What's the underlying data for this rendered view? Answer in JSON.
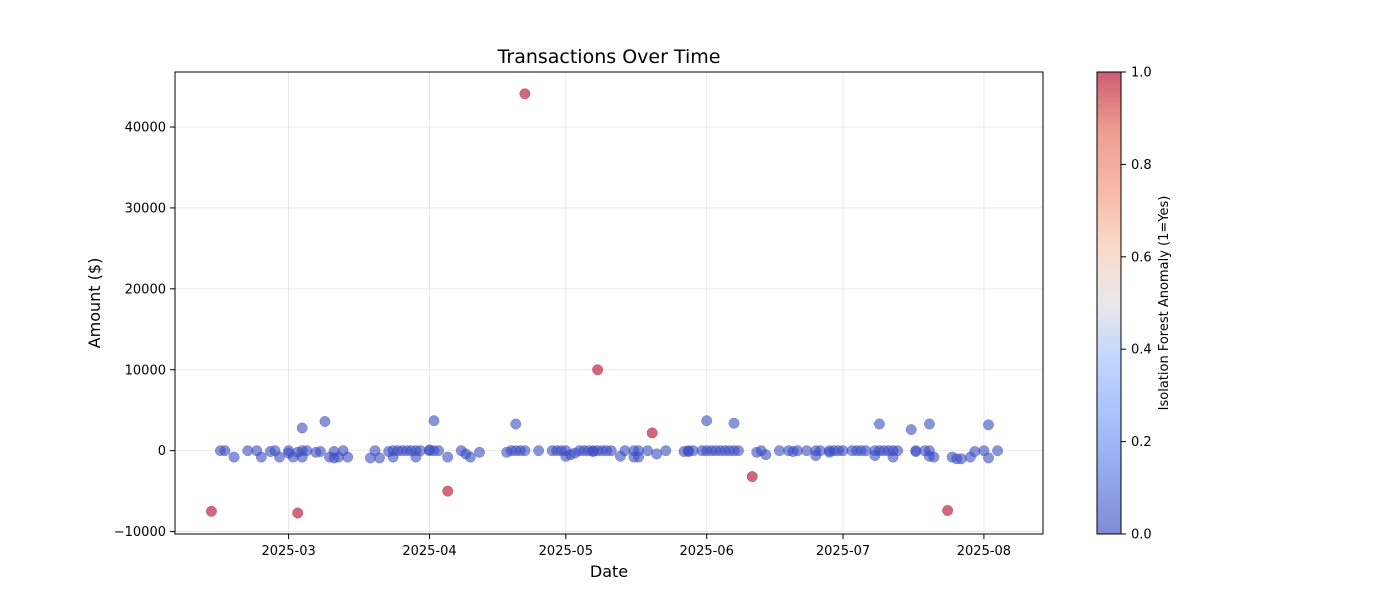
{
  "chart_data": {
    "type": "scatter",
    "title": "Transactions Over Time",
    "xlabel": "Date",
    "ylabel": "Amount ($)",
    "x_ticks": [
      "2025-03",
      "2025-04",
      "2025-05",
      "2025-06",
      "2025-07",
      "2025-08"
    ],
    "y_ticks": [
      -10000,
      0,
      10000,
      20000,
      30000,
      40000
    ],
    "xlim": [
      "2025-02-04",
      "2025-08-14"
    ],
    "ylim": [
      -10300,
      46800
    ],
    "grid": true,
    "colorbar": {
      "label": "Isolation Forest Anomaly (1=Yes)",
      "range": [
        0,
        1
      ],
      "ticks": [
        "0.0",
        "0.2",
        "0.4",
        "0.6",
        "0.8",
        "1.0"
      ],
      "colormap": "coolwarm"
    },
    "colors": {
      "normal": "#3b4cc0",
      "anomaly": "#b40426"
    },
    "points": [
      {
        "x": "2025-02-12",
        "y": -7500,
        "anomaly": 1
      },
      {
        "x": "2025-03-03",
        "y": -7700,
        "anomaly": 1
      },
      {
        "x": "2025-04-05",
        "y": -5000,
        "anomaly": 1
      },
      {
        "x": "2025-04-22",
        "y": 44100,
        "anomaly": 1
      },
      {
        "x": "2025-05-08",
        "y": 10000,
        "anomaly": 1
      },
      {
        "x": "2025-05-20",
        "y": 2200,
        "anomaly": 1
      },
      {
        "x": "2025-06-11",
        "y": -3200,
        "anomaly": 1
      },
      {
        "x": "2025-07-24",
        "y": -7400,
        "anomaly": 1
      },
      {
        "x": "2025-02-14",
        "y": 0,
        "anomaly": 0
      },
      {
        "x": "2025-02-15",
        "y": 0,
        "anomaly": 0
      },
      {
        "x": "2025-02-17",
        "y": -800,
        "anomaly": 0
      },
      {
        "x": "2025-02-20",
        "y": 0,
        "anomaly": 0
      },
      {
        "x": "2025-02-22",
        "y": 0,
        "anomaly": 0
      },
      {
        "x": "2025-02-23",
        "y": -800,
        "anomaly": 0
      },
      {
        "x": "2025-02-25",
        "y": -100,
        "anomaly": 0
      },
      {
        "x": "2025-02-26",
        "y": 0,
        "anomaly": 0
      },
      {
        "x": "2025-02-27",
        "y": -800,
        "anomaly": 0
      },
      {
        "x": "2025-03-01",
        "y": 0,
        "anomaly": 0
      },
      {
        "x": "2025-03-01",
        "y": -300,
        "anomaly": 0
      },
      {
        "x": "2025-03-02",
        "y": -800,
        "anomaly": 0
      },
      {
        "x": "2025-03-03",
        "y": -200,
        "anomaly": 0
      },
      {
        "x": "2025-03-04",
        "y": -800,
        "anomaly": 0
      },
      {
        "x": "2025-03-04",
        "y": 2800,
        "anomaly": 0
      },
      {
        "x": "2025-03-04",
        "y": 0,
        "anomaly": 0
      },
      {
        "x": "2025-03-05",
        "y": 0,
        "anomaly": 0
      },
      {
        "x": "2025-03-07",
        "y": -200,
        "anomaly": 0
      },
      {
        "x": "2025-03-08",
        "y": -100,
        "anomaly": 0
      },
      {
        "x": "2025-03-09",
        "y": 3600,
        "anomaly": 0
      },
      {
        "x": "2025-03-10",
        "y": -800,
        "anomaly": 0
      },
      {
        "x": "2025-03-11",
        "y": -100,
        "anomaly": 0
      },
      {
        "x": "2025-03-11",
        "y": -900,
        "anomaly": 0
      },
      {
        "x": "2025-03-12",
        "y": -800,
        "anomaly": 0
      },
      {
        "x": "2025-03-13",
        "y": 0,
        "anomaly": 0
      },
      {
        "x": "2025-03-14",
        "y": -800,
        "anomaly": 0
      },
      {
        "x": "2025-03-19",
        "y": -900,
        "anomaly": 0
      },
      {
        "x": "2025-03-20",
        "y": 0,
        "anomaly": 0
      },
      {
        "x": "2025-03-21",
        "y": -900,
        "anomaly": 0
      },
      {
        "x": "2025-03-23",
        "y": -100,
        "anomaly": 0
      },
      {
        "x": "2025-03-24",
        "y": 0,
        "anomaly": 0
      },
      {
        "x": "2025-03-24",
        "y": -800,
        "anomaly": 0
      },
      {
        "x": "2025-03-25",
        "y": 0,
        "anomaly": 0
      },
      {
        "x": "2025-03-26",
        "y": 0,
        "anomaly": 0
      },
      {
        "x": "2025-03-27",
        "y": 0,
        "anomaly": 0
      },
      {
        "x": "2025-03-28",
        "y": 0,
        "anomaly": 0
      },
      {
        "x": "2025-03-29",
        "y": -800,
        "anomaly": 0
      },
      {
        "x": "2025-03-29",
        "y": 0,
        "anomaly": 0
      },
      {
        "x": "2025-03-30",
        "y": 0,
        "anomaly": 0
      },
      {
        "x": "2025-04-01",
        "y": 0,
        "anomaly": 0
      },
      {
        "x": "2025-04-01",
        "y": 100,
        "anomaly": 0
      },
      {
        "x": "2025-04-02",
        "y": 0,
        "anomaly": 0
      },
      {
        "x": "2025-04-02",
        "y": 3700,
        "anomaly": 0
      },
      {
        "x": "2025-04-03",
        "y": 0,
        "anomaly": 0
      },
      {
        "x": "2025-04-05",
        "y": -800,
        "anomaly": 0
      },
      {
        "x": "2025-04-08",
        "y": 0,
        "anomaly": 0
      },
      {
        "x": "2025-04-09",
        "y": -400,
        "anomaly": 0
      },
      {
        "x": "2025-04-10",
        "y": -800,
        "anomaly": 0
      },
      {
        "x": "2025-04-12",
        "y": -200,
        "anomaly": 0
      },
      {
        "x": "2025-04-18",
        "y": -200,
        "anomaly": 0
      },
      {
        "x": "2025-04-19",
        "y": 0,
        "anomaly": 0
      },
      {
        "x": "2025-04-20",
        "y": 3300,
        "anomaly": 0
      },
      {
        "x": "2025-04-20",
        "y": 0,
        "anomaly": 0
      },
      {
        "x": "2025-04-21",
        "y": 0,
        "anomaly": 0
      },
      {
        "x": "2025-04-22",
        "y": 0,
        "anomaly": 0
      },
      {
        "x": "2025-04-25",
        "y": 0,
        "anomaly": 0
      },
      {
        "x": "2025-04-28",
        "y": 0,
        "anomaly": 0
      },
      {
        "x": "2025-04-29",
        "y": 0,
        "anomaly": 0
      },
      {
        "x": "2025-04-30",
        "y": 0,
        "anomaly": 0
      },
      {
        "x": "2025-05-01",
        "y": 0,
        "anomaly": 0
      },
      {
        "x": "2025-05-01",
        "y": -700,
        "anomaly": 0
      },
      {
        "x": "2025-05-02",
        "y": -500,
        "anomaly": 0
      },
      {
        "x": "2025-05-03",
        "y": -300,
        "anomaly": 0
      },
      {
        "x": "2025-05-04",
        "y": 0,
        "anomaly": 0
      },
      {
        "x": "2025-05-05",
        "y": 0,
        "anomaly": 0
      },
      {
        "x": "2025-05-06",
        "y": 0,
        "anomaly": 0
      },
      {
        "x": "2025-05-07",
        "y": 0,
        "anomaly": 0
      },
      {
        "x": "2025-05-07",
        "y": -100,
        "anomaly": 0
      },
      {
        "x": "2025-05-08",
        "y": 0,
        "anomaly": 0
      },
      {
        "x": "2025-05-09",
        "y": 0,
        "anomaly": 0
      },
      {
        "x": "2025-05-10",
        "y": 0,
        "anomaly": 0
      },
      {
        "x": "2025-05-11",
        "y": 0,
        "anomaly": 0
      },
      {
        "x": "2025-05-13",
        "y": -700,
        "anomaly": 0
      },
      {
        "x": "2025-05-14",
        "y": 0,
        "anomaly": 0
      },
      {
        "x": "2025-05-16",
        "y": 0,
        "anomaly": 0
      },
      {
        "x": "2025-05-16",
        "y": -800,
        "anomaly": 0
      },
      {
        "x": "2025-05-17",
        "y": 0,
        "anomaly": 0
      },
      {
        "x": "2025-05-17",
        "y": -800,
        "anomaly": 0
      },
      {
        "x": "2025-05-19",
        "y": 0,
        "anomaly": 0
      },
      {
        "x": "2025-05-21",
        "y": -400,
        "anomaly": 0
      },
      {
        "x": "2025-05-23",
        "y": 0,
        "anomaly": 0
      },
      {
        "x": "2025-05-27",
        "y": -100,
        "anomaly": 0
      },
      {
        "x": "2025-05-28",
        "y": 0,
        "anomaly": 0
      },
      {
        "x": "2025-05-28",
        "y": -100,
        "anomaly": 0
      },
      {
        "x": "2025-05-29",
        "y": 0,
        "anomaly": 0
      },
      {
        "x": "2025-05-31",
        "y": 0,
        "anomaly": 0
      },
      {
        "x": "2025-06-01",
        "y": 3700,
        "anomaly": 0
      },
      {
        "x": "2025-06-01",
        "y": 0,
        "anomaly": 0
      },
      {
        "x": "2025-06-02",
        "y": 0,
        "anomaly": 0
      },
      {
        "x": "2025-06-03",
        "y": 0,
        "anomaly": 0
      },
      {
        "x": "2025-06-04",
        "y": 0,
        "anomaly": 0
      },
      {
        "x": "2025-06-05",
        "y": 0,
        "anomaly": 0
      },
      {
        "x": "2025-06-06",
        "y": 0,
        "anomaly": 0
      },
      {
        "x": "2025-06-07",
        "y": 3400,
        "anomaly": 0
      },
      {
        "x": "2025-06-07",
        "y": 0,
        "anomaly": 0
      },
      {
        "x": "2025-06-08",
        "y": 0,
        "anomaly": 0
      },
      {
        "x": "2025-06-12",
        "y": -200,
        "anomaly": 0
      },
      {
        "x": "2025-06-13",
        "y": 0,
        "anomaly": 0
      },
      {
        "x": "2025-06-14",
        "y": -500,
        "anomaly": 0
      },
      {
        "x": "2025-06-17",
        "y": 0,
        "anomaly": 0
      },
      {
        "x": "2025-06-19",
        "y": 0,
        "anomaly": 0
      },
      {
        "x": "2025-06-20",
        "y": -100,
        "anomaly": 0
      },
      {
        "x": "2025-06-21",
        "y": 0,
        "anomaly": 0
      },
      {
        "x": "2025-06-23",
        "y": 0,
        "anomaly": 0
      },
      {
        "x": "2025-06-25",
        "y": -600,
        "anomaly": 0
      },
      {
        "x": "2025-06-25",
        "y": 0,
        "anomaly": 0
      },
      {
        "x": "2025-06-26",
        "y": 0,
        "anomaly": 0
      },
      {
        "x": "2025-06-28",
        "y": 0,
        "anomaly": 0
      },
      {
        "x": "2025-06-28",
        "y": -200,
        "anomaly": 0
      },
      {
        "x": "2025-06-29",
        "y": 0,
        "anomaly": 0
      },
      {
        "x": "2025-06-30",
        "y": 0,
        "anomaly": 0
      },
      {
        "x": "2025-07-01",
        "y": 0,
        "anomaly": 0
      },
      {
        "x": "2025-07-03",
        "y": 0,
        "anomaly": 0
      },
      {
        "x": "2025-07-04",
        "y": 0,
        "anomaly": 0
      },
      {
        "x": "2025-07-05",
        "y": 0,
        "anomaly": 0
      },
      {
        "x": "2025-07-06",
        "y": 0,
        "anomaly": 0
      },
      {
        "x": "2025-07-08",
        "y": 0,
        "anomaly": 0
      },
      {
        "x": "2025-07-08",
        "y": -600,
        "anomaly": 0
      },
      {
        "x": "2025-07-09",
        "y": 0,
        "anomaly": 0
      },
      {
        "x": "2025-07-09",
        "y": 3300,
        "anomaly": 0
      },
      {
        "x": "2025-07-10",
        "y": 0,
        "anomaly": 0
      },
      {
        "x": "2025-07-11",
        "y": 0,
        "anomaly": 0
      },
      {
        "x": "2025-07-12",
        "y": 0,
        "anomaly": 0
      },
      {
        "x": "2025-07-12",
        "y": -800,
        "anomaly": 0
      },
      {
        "x": "2025-07-13",
        "y": 0,
        "anomaly": 0
      },
      {
        "x": "2025-07-16",
        "y": 2600,
        "anomaly": 0
      },
      {
        "x": "2025-07-17",
        "y": 0,
        "anomaly": 0
      },
      {
        "x": "2025-07-17",
        "y": -100,
        "anomaly": 0
      },
      {
        "x": "2025-07-19",
        "y": 0,
        "anomaly": 0
      },
      {
        "x": "2025-07-20",
        "y": 3300,
        "anomaly": 0
      },
      {
        "x": "2025-07-20",
        "y": -700,
        "anomaly": 0
      },
      {
        "x": "2025-07-20",
        "y": 0,
        "anomaly": 0
      },
      {
        "x": "2025-07-21",
        "y": -800,
        "anomaly": 0
      },
      {
        "x": "2025-07-25",
        "y": -800,
        "anomaly": 0
      },
      {
        "x": "2025-07-26",
        "y": -1000,
        "anomaly": 0
      },
      {
        "x": "2025-07-27",
        "y": -1000,
        "anomaly": 0
      },
      {
        "x": "2025-07-29",
        "y": -800,
        "anomaly": 0
      },
      {
        "x": "2025-07-30",
        "y": -100,
        "anomaly": 0
      },
      {
        "x": "2025-08-01",
        "y": 0,
        "anomaly": 0
      },
      {
        "x": "2025-08-02",
        "y": 3200,
        "anomaly": 0
      },
      {
        "x": "2025-08-02",
        "y": -900,
        "anomaly": 0
      },
      {
        "x": "2025-08-04",
        "y": 0,
        "anomaly": 0
      }
    ]
  }
}
